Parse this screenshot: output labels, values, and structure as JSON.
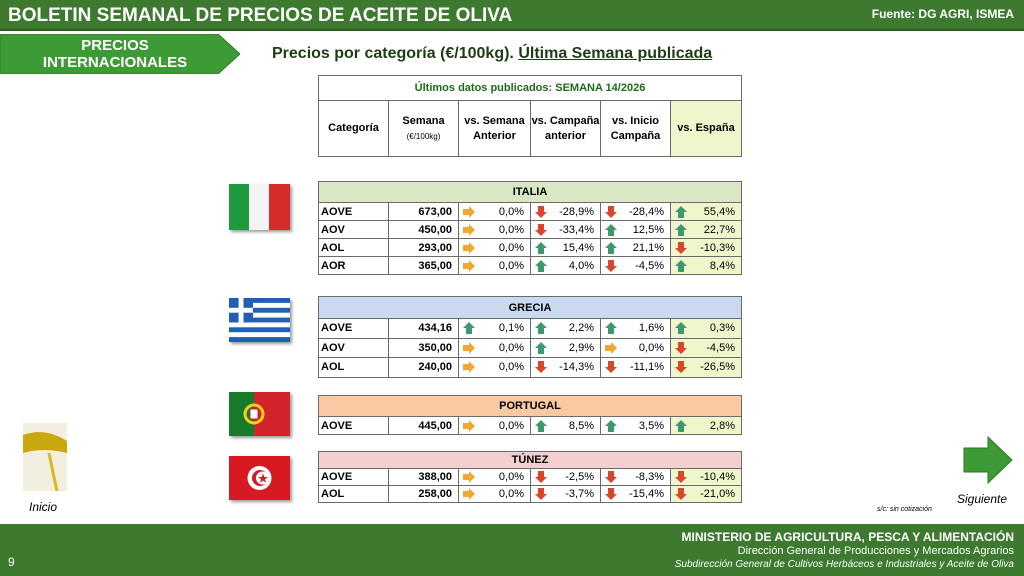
{
  "header": {
    "title": "BOLETIN SEMANAL DE PRECIOS DE ACEITE DE OLIVA",
    "source": "Fuente: DG AGRI, ISMEA"
  },
  "section_tab": "PRECIOS INTERNACIONALES",
  "subtitle": {
    "text": "Precios por categoría (€/100kg).",
    "link": "Última Semana publicada"
  },
  "table": {
    "caption": "Últimos datos publicados: SEMANA 14/2026",
    "columns": [
      "Categoría",
      "Semana",
      "vs. Semana Anterior",
      "vs. Campaña anterior",
      "vs. Inicio Campaña",
      "vs. España"
    ],
    "unit": "(€/100kg)",
    "countries": [
      {
        "name": "ITALIA",
        "rows": [
          {
            "category": "AOVE",
            "price": "673,00",
            "changes": [
              "0,0%",
              "-28,9%",
              "-28,4%",
              "55,4%"
            ]
          },
          {
            "category": "AOV",
            "price": "450,00",
            "changes": [
              "0,0%",
              "-33,4%",
              "12,5%",
              "22,7%"
            ]
          },
          {
            "category": "AOL",
            "price": "293,00",
            "changes": [
              "0,0%",
              "15,4%",
              "21,1%",
              "-10,3%"
            ]
          },
          {
            "category": "AOR",
            "price": "365,00",
            "changes": [
              "0,0%",
              "4,0%",
              "-4,5%",
              "8,4%"
            ]
          }
        ]
      },
      {
        "name": "GRECIA",
        "rows": [
          {
            "category": "AOVE",
            "price": "434,16",
            "changes": [
              "0,1%",
              "2,2%",
              "1,6%",
              "0,3%"
            ]
          },
          {
            "category": "AOV",
            "price": "350,00",
            "changes": [
              "0,0%",
              "2,9%",
              "0,0%",
              "-4,5%"
            ]
          },
          {
            "category": "AOL",
            "price": "240,00",
            "changes": [
              "0,0%",
              "-14,3%",
              "-11,1%",
              "-26,5%"
            ]
          }
        ]
      },
      {
        "name": "PORTUGAL",
        "rows": [
          {
            "category": "AOVE",
            "price": "445,00",
            "changes": [
              "0,0%",
              "8,5%",
              "3,5%",
              "2,8%"
            ]
          }
        ]
      },
      {
        "name": "TÚNEZ",
        "rows": [
          {
            "category": "AOVE",
            "price": "388,00",
            "changes": [
              "0,0%",
              "-2,5%",
              "-8,3%",
              "-10,4%"
            ]
          },
          {
            "category": "AOL",
            "price": "258,00",
            "changes": [
              "0,0%",
              "-3,7%",
              "-15,4%",
              "-21,0%"
            ]
          }
        ]
      }
    ],
    "note": "s/c: sin cotización"
  },
  "nav": {
    "home": "Inicio",
    "next": "Siguiente"
  },
  "footer": {
    "ministry": "MINISTERIO DE AGRICULTURA, PESCA Y ALIMENTACIÓN",
    "directorate": "Dirección General de Producciones y Mercados Agrarios",
    "subdirectorate": "Subdirección General de Cultivos Herbáceos e Industriales y Aceite de Oliva",
    "page": "9"
  }
}
